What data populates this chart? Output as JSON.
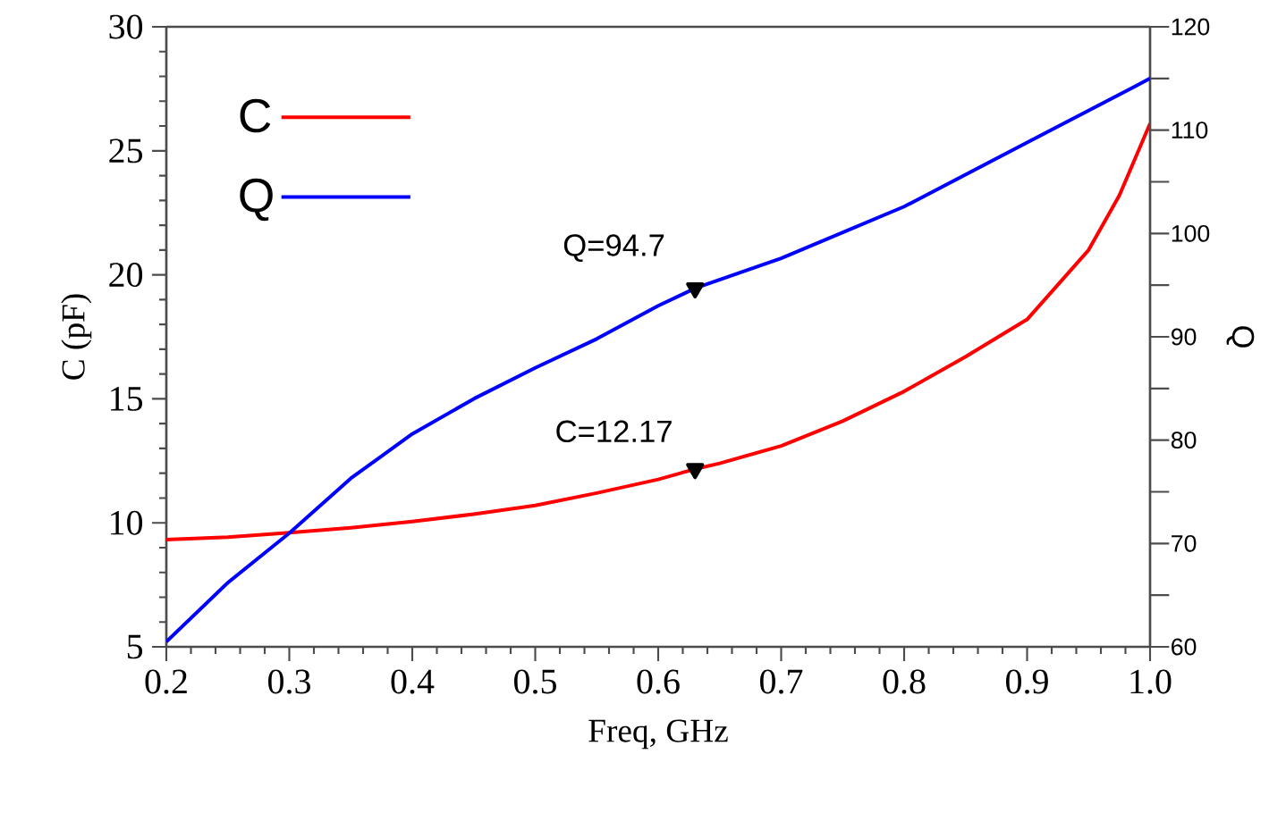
{
  "chart_data": {
    "type": "line",
    "xlabel": "Freq, GHz",
    "ylabel": "C (pF)",
    "y2label": "Q",
    "x": [
      0.2,
      0.25,
      0.3,
      0.35,
      0.4,
      0.45,
      0.5,
      0.55,
      0.6,
      0.63,
      0.65,
      0.7,
      0.75,
      0.8,
      0.85,
      0.9,
      0.95,
      0.975,
      1.0
    ],
    "series": [
      {
        "name": "C",
        "color": "#ff0000",
        "values": [
          9.32,
          9.42,
          9.6,
          9.8,
          10.05,
          10.35,
          10.7,
          11.2,
          11.75,
          12.17,
          12.4,
          13.1,
          14.1,
          15.3,
          16.7,
          18.2,
          21.0,
          23.2,
          26.1
        ]
      },
      {
        "name": "Q",
        "color": "#0000ff",
        "axis": "y2",
        "x": [
          0.2,
          0.25,
          0.3,
          0.35,
          0.4,
          0.45,
          0.5,
          0.55,
          0.6,
          0.63,
          0.7,
          0.8,
          0.9,
          1.0
        ],
        "values": [
          60.5,
          66.2,
          71.0,
          76.3,
          80.6,
          84.0,
          87.0,
          89.8,
          93.0,
          94.7,
          97.6,
          102.6,
          108.8,
          115.0
        ]
      },
      {
        "type": "scatter",
        "marker": "triangle",
        "color": "#000000",
        "x": [
          0.63
        ],
        "values": [
          12.17
        ]
      },
      {
        "type": "scatter",
        "marker": "triangle",
        "color": "#000000",
        "axis": "y2",
        "x": [
          0.63
        ],
        "values": [
          94.7
        ]
      }
    ],
    "xlim": [
      0.2,
      1.0
    ],
    "xticks": [
      0.2,
      0.3,
      0.4,
      0.5,
      0.6,
      0.7,
      0.8,
      0.9,
      {
        "value": 1.0,
        "label": "1.0"
      }
    ],
    "ylim": [
      5,
      30
    ],
    "yticks": [
      5,
      10,
      15,
      20,
      25,
      30
    ],
    "y2lim": [
      60,
      120
    ],
    "y2ticks": [
      60,
      70,
      80,
      90,
      100,
      110,
      120
    ],
    "annotations": [
      "Q=94.7",
      {
        "text": "C=12.17",
        "x": 0.63,
        "y": 12.17
      }
    ],
    "legend": "top left",
    "grid": false,
    "marker": "none",
    "line_style": "solid"
  }
}
